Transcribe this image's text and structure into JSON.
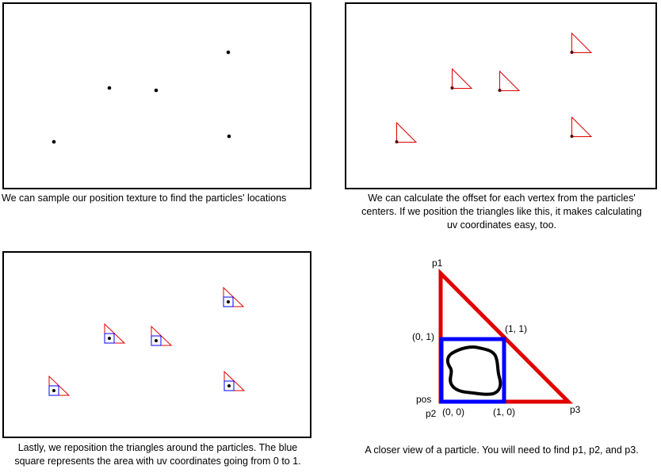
{
  "colors": {
    "triangle": "#e00000",
    "uv_square": "#0000ff",
    "dot": "#000000",
    "particle_outline": "#000000"
  },
  "panels": [
    {
      "id": "panel-sample",
      "particles": [
        [
          68,
          179
        ],
        [
          138,
          111
        ],
        [
          197,
          114
        ],
        [
          288,
          66
        ],
        [
          289,
          172
        ]
      ],
      "caption_lines": [
        "We can sample our position texture to find the particles' locations"
      ]
    },
    {
      "id": "panel-offset",
      "particles": [
        [
          500,
          179
        ],
        [
          570,
          111
        ],
        [
          630,
          114
        ],
        [
          721,
          66
        ],
        [
          721,
          172
        ]
      ],
      "caption_lines": [
        "We can calculate the offset for each vertex from the particles'",
        "centers.  If we position the triangles like this, it makes calculating",
        "uv coordinates easy, too."
      ]
    },
    {
      "id": "panel-reposition",
      "particles": [
        [
          68,
          492
        ],
        [
          138,
          426
        ],
        [
          197,
          429
        ],
        [
          288,
          380
        ],
        [
          289,
          486
        ]
      ],
      "caption_lines": [
        "Lastly, we reposition the triangles around the particles.  The blue",
        "square represents the area with uv coordinates going from 0 to 1."
      ]
    }
  ],
  "detail": {
    "labels": {
      "p1": "p1",
      "tl": "(0, 1)",
      "tr": "(1, 1)",
      "pos": "pos",
      "p2": "p2",
      "bl": "(0, 0)",
      "br": "(1, 0)",
      "p3": "p3"
    },
    "caption_lines": [
      "A closer view of a particle.  You will need to find p1, p2, and p3."
    ]
  }
}
